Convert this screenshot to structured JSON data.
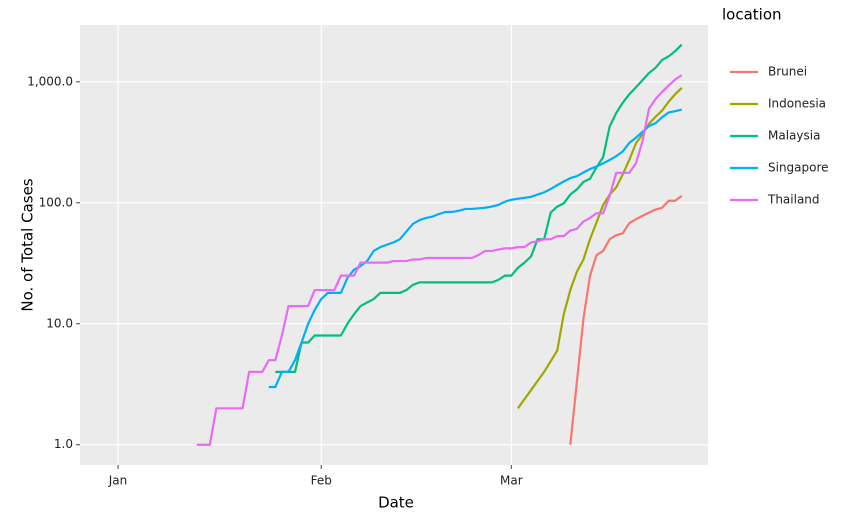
{
  "chart_data": {
    "type": "line",
    "x_label": "Date",
    "y_label": "No. of Total Cases",
    "legend_title": "location",
    "yscale": "log",
    "grid": true,
    "legend_position": "right",
    "xlim": [
      -4.8,
      91
    ],
    "xticks": [
      {
        "value": 1,
        "label": "Jan"
      },
      {
        "value": 32,
        "label": "Feb"
      },
      {
        "value": 61,
        "label": "Mar"
      }
    ],
    "ylim": [
      0.68,
      2950
    ],
    "yticks": [
      {
        "value": 1,
        "label": "1.0"
      },
      {
        "value": 10,
        "label": "10.0"
      },
      {
        "value": 100,
        "label": "100.0"
      },
      {
        "value": 1000,
        "label": "1,000.0"
      }
    ],
    "series": [
      {
        "name": "Brunei",
        "color": "#F8766D",
        "x": [
          70,
          72,
          73,
          74,
          75,
          76,
          77,
          78,
          79,
          80,
          81,
          82,
          83,
          84,
          85,
          86,
          87
        ],
        "values": [
          1,
          11,
          25,
          37,
          40,
          50,
          54,
          56,
          68,
          73,
          78,
          83,
          88,
          91,
          104,
          104,
          114
        ]
      },
      {
        "name": "Indonesia",
        "color": "#A3A500",
        "x": [
          62,
          66,
          68,
          69,
          70,
          71,
          72,
          73,
          74,
          75,
          76,
          77,
          78,
          79,
          80,
          81,
          82,
          83,
          84,
          85,
          86,
          87
        ],
        "values": [
          2,
          4,
          6,
          12,
          19,
          27,
          34,
          50,
          69,
          96,
          117,
          134,
          172,
          227,
          309,
          369,
          450,
          514,
          579,
          686,
          790,
          893
        ]
      },
      {
        "name": "Malaysia",
        "color": "#00BF7D",
        "x": [
          25,
          26,
          27,
          28,
          29,
          30,
          31,
          32,
          33,
          34,
          35,
          36,
          37,
          38,
          39,
          40,
          41,
          42,
          43,
          44,
          45,
          46,
          47,
          48,
          49,
          50,
          51,
          52,
          53,
          54,
          55,
          56,
          57,
          58,
          59,
          60,
          61,
          62,
          63,
          64,
          65,
          66,
          67,
          68,
          69,
          70,
          71,
          72,
          73,
          74,
          75,
          76,
          77,
          78,
          79,
          80,
          81,
          82,
          83,
          84,
          85,
          86,
          87
        ],
        "values": [
          4,
          4,
          4,
          4,
          7,
          7,
          8,
          8,
          8,
          8,
          8,
          10,
          12,
          14,
          15,
          16,
          18,
          18,
          18,
          18,
          19,
          21,
          22,
          22,
          22,
          22,
          22,
          22,
          22,
          22,
          22,
          22,
          22,
          22,
          23,
          25,
          25,
          29,
          32,
          36,
          50,
          50,
          83,
          93,
          99,
          117,
          129,
          149,
          158,
          197,
          238,
          428,
          553,
          673,
          790,
          900,
          1030,
          1183,
          1306,
          1518,
          1624,
          1796,
          2031
        ]
      },
      {
        "name": "Singapore",
        "color": "#00B0F6",
        "x": [
          24,
          25,
          26,
          27,
          28,
          29,
          30,
          31,
          32,
          33,
          34,
          35,
          36,
          37,
          38,
          39,
          40,
          41,
          42,
          43,
          44,
          45,
          46,
          47,
          48,
          49,
          50,
          51,
          52,
          53,
          54,
          55,
          56,
          57,
          58,
          59,
          60,
          61,
          62,
          63,
          64,
          65,
          66,
          67,
          68,
          69,
          70,
          71,
          72,
          73,
          74,
          75,
          76,
          77,
          78,
          79,
          80,
          81,
          82,
          83,
          84,
          85,
          86,
          87
        ],
        "values": [
          3,
          3,
          4,
          4,
          5,
          7,
          10,
          13,
          16,
          18,
          18,
          18,
          24,
          28,
          30,
          33,
          40,
          43,
          45,
          47,
          50,
          58,
          67,
          72,
          75,
          77,
          81,
          84,
          84,
          86,
          89,
          89,
          90,
          91,
          93,
          96,
          102,
          106,
          108,
          110,
          112,
          117,
          122,
          130,
          140,
          150,
          160,
          166,
          178,
          190,
          200,
          212,
          226,
          243,
          266,
          313,
          345,
          385,
          432,
          455,
          509,
          558,
          572,
          590
        ]
      },
      {
        "name": "Thailand",
        "color": "#E76BF3",
        "x": [
          13,
          14,
          15,
          16,
          17,
          18,
          19,
          20,
          21,
          22,
          23,
          24,
          25,
          26,
          27,
          28,
          29,
          30,
          31,
          32,
          33,
          34,
          35,
          36,
          37,
          38,
          39,
          40,
          41,
          42,
          43,
          44,
          45,
          46,
          47,
          48,
          49,
          50,
          51,
          52,
          53,
          54,
          55,
          56,
          57,
          58,
          59,
          60,
          61,
          62,
          63,
          64,
          65,
          66,
          67,
          68,
          69,
          70,
          71,
          72,
          73,
          74,
          75,
          76,
          77,
          78,
          79,
          80,
          81,
          82,
          83,
          84,
          85,
          86,
          87
        ],
        "values": [
          1,
          1,
          1,
          2,
          2,
          2,
          2,
          2,
          4,
          4,
          4,
          5,
          5,
          8,
          14,
          14,
          14,
          14,
          19,
          19,
          19,
          19,
          25,
          25,
          25,
          32,
          32,
          32,
          32,
          32,
          33,
          33,
          33,
          34,
          34,
          35,
          35,
          35,
          35,
          35,
          35,
          35,
          35,
          37,
          40,
          40,
          41,
          42,
          42,
          43,
          43,
          47,
          48,
          50,
          50,
          53,
          53,
          59,
          61,
          70,
          75,
          82,
          82,
          114,
          177,
          177,
          177,
          212,
          322,
          599,
          721,
          827,
          934,
          1045,
          1136
        ]
      }
    ]
  }
}
